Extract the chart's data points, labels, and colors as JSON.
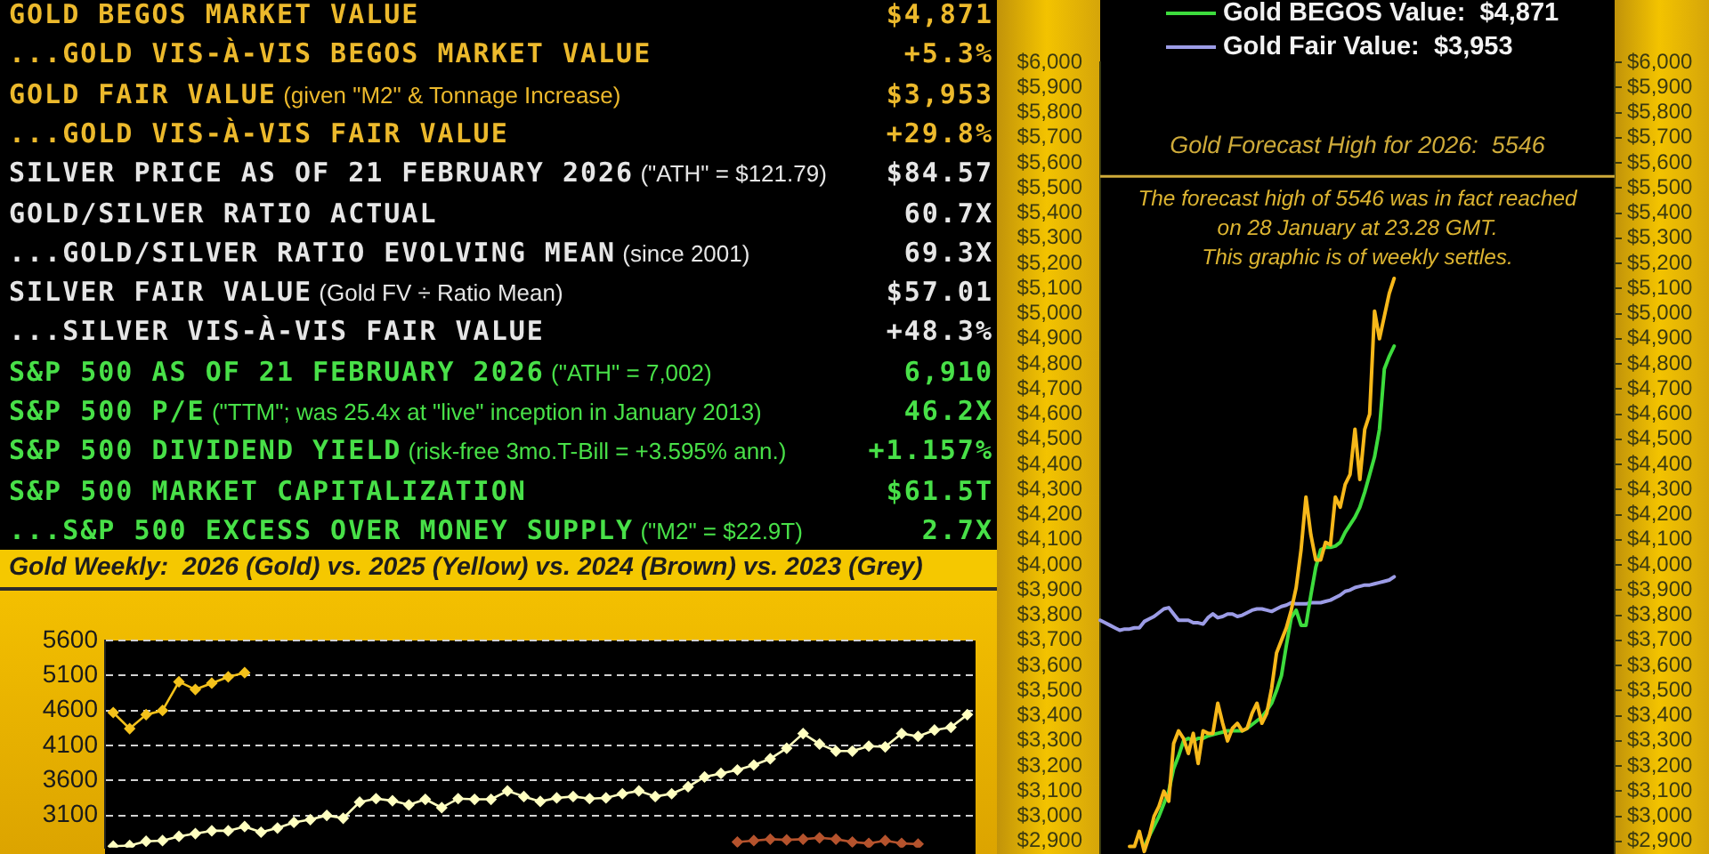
{
  "chart_data": [
    {
      "type": "other",
      "categories": [
        "GOLD BEGOS MARKET VALUE",
        "...GOLD VIS-À-VIS BEGOS MARKET VALUE",
        "GOLD FAIR VALUE (given \"M2\" & Tonnage Increase)",
        "...GOLD VIS-À-VIS FAIR VALUE",
        "SILVER PRICE AS OF 21 FEBRUARY 2026 (\"ATH\" = $121.79)",
        "GOLD/SILVER RATIO ACTUAL",
        "...GOLD/SILVER RATIO EVOLVING MEAN (since 2001)",
        "SILVER FAIR VALUE (Gold FV ÷ Ratio Mean)",
        "...SILVER VIS-À-VIS FAIR VALUE",
        "S&P 500 AS OF 21 FEBRUARY 2026 (\"ATH\" = 7,002)",
        "S&P 500 P/E (\"TTM\"; was 25.4x at \"live\" inception in January 2013)",
        "S&P 500 DIVIDEND YIELD (risk-free 3mo.T-Bill = +3.595% ann.)",
        "S&P 500 MARKET CAPITALIZATION",
        "...S&P 500 EXCESS OVER MONEY SUPPLY (\"M2\" = $22.9T)"
      ],
      "value_labels": [
        "$4,871",
        "+5.3%",
        "$3,953",
        "+29.8%",
        "$84.57",
        "60.7X",
        "69.3X",
        "$57.01",
        "+48.3%",
        "6,910",
        "46.2X",
        "+1.157%",
        "$61.5T",
        "2.7X"
      ]
    },
    {
      "type": "line",
      "title": "Gold Weekly:  2026 (Gold) vs. 2025 (Yellow) vs. 2024 (Brown) vs. 2023 (Grey)",
      "categories": [
        null,
        null,
        null,
        null,
        null,
        null,
        null,
        null,
        null,
        null,
        null,
        null,
        null,
        null,
        null,
        null,
        null,
        null,
        null,
        null,
        null,
        null,
        null,
        null,
        null,
        null,
        null,
        null,
        null,
        null,
        null,
        null,
        null,
        null,
        null,
        null,
        null,
        null,
        null,
        null,
        null,
        null,
        null,
        null,
        null,
        null,
        null,
        null,
        null,
        null,
        null,
        null,
        null
      ],
      "series": [
        {
          "color": "#f4c21b",
          "values": [
            4570,
            4340,
            4540,
            4600,
            5010,
            4900,
            4990,
            5080,
            5140,
            null,
            null,
            null,
            null,
            null,
            null,
            null,
            null,
            null,
            null,
            null,
            null,
            null,
            null,
            null,
            null,
            null,
            null,
            null,
            null,
            null,
            null,
            null,
            null,
            null,
            null,
            null,
            null,
            null,
            null,
            null,
            null,
            null,
            null,
            null,
            null,
            null,
            null,
            null,
            null,
            null,
            null,
            null,
            null
          ]
        },
        {
          "color": "#ffffc0",
          "values": [
            2660,
            2670,
            2730,
            2740,
            2800,
            2840,
            2880,
            2880,
            2940,
            2860,
            2920,
            3000,
            3040,
            3100,
            3060,
            3290,
            3340,
            3310,
            3250,
            3330,
            3210,
            3340,
            3330,
            3330,
            3450,
            3370,
            3300,
            3350,
            3370,
            3340,
            3350,
            3410,
            3450,
            3370,
            3410,
            3510,
            3650,
            3700,
            3750,
            3820,
            3910,
            4060,
            4270,
            4120,
            4020,
            4020,
            4090,
            4080,
            4270,
            4230,
            4320,
            4360,
            4540
          ]
        },
        {
          "color": "#b5532d",
          "values": [
            null,
            null,
            null,
            null,
            null,
            null,
            null,
            null,
            null,
            null,
            null,
            null,
            null,
            null,
            null,
            null,
            null,
            null,
            null,
            null,
            null,
            null,
            null,
            null,
            null,
            null,
            null,
            null,
            null,
            null,
            null,
            null,
            null,
            null,
            null,
            null,
            null,
            null,
            2720,
            2740,
            2760,
            2750,
            2760,
            2780,
            2760,
            2720,
            2700,
            2740,
            2700,
            2690,
            null,
            null,
            null
          ]
        }
      ],
      "ylim": [
        2640,
        5600
      ],
      "yticks": [
        3100,
        3600,
        4100,
        4600,
        5100,
        5600
      ],
      "grid": "y",
      "marker": "diamond",
      "tick_labels": "y"
    },
    {
      "type": "line",
      "categories": [
        null,
        null,
        null,
        null,
        null,
        null,
        null,
        null,
        null,
        null,
        null,
        null,
        null,
        null,
        null,
        null,
        null,
        null,
        null,
        null,
        null,
        null,
        null,
        null,
        null,
        null,
        null,
        null,
        null,
        null,
        null,
        null,
        null,
        null,
        null,
        null,
        null,
        null,
        null,
        null,
        null,
        null,
        null,
        null,
        null,
        null,
        null,
        null,
        null,
        null,
        null,
        null,
        null,
        null,
        null,
        null,
        null,
        null,
        null,
        null,
        null,
        null,
        null,
        null,
        null,
        null,
        null,
        null,
        null,
        null,
        null,
        null,
        null,
        null,
        null,
        null,
        null,
        null,
        null,
        null,
        null,
        null,
        null,
        null,
        null,
        null,
        null,
        null,
        null,
        null,
        null,
        null,
        null,
        null,
        null,
        null,
        null,
        null,
        null,
        null,
        null,
        null,
        null,
        null,
        null,
        null
      ],
      "series": [
        {
          "color": "#f7b81a",
          "values": [
            null,
            null,
            null,
            null,
            null,
            null,
            2880,
            2880,
            2940,
            2860,
            2920,
            3000,
            3040,
            3100,
            3060,
            3290,
            3340,
            3310,
            3250,
            3330,
            3210,
            3340,
            3330,
            3330,
            3450,
            3370,
            3300,
            3350,
            3370,
            3340,
            3350,
            3410,
            3450,
            3370,
            3410,
            3510,
            3650,
            3700,
            3750,
            3820,
            3910,
            4060,
            4270,
            4120,
            4020,
            4020,
            4090,
            4080,
            4270,
            4230,
            4320,
            4360,
            4540,
            4340,
            4540,
            4600,
            5010,
            4900,
            4990,
            5080,
            5140,
            null,
            null,
            null,
            null,
            null,
            null,
            null,
            null,
            null,
            null,
            null,
            null,
            null,
            null,
            null,
            null,
            null,
            null,
            null,
            null,
            null,
            null,
            null,
            null,
            null,
            null,
            null,
            null,
            null,
            null,
            null,
            null,
            null,
            null,
            null,
            null,
            null,
            null,
            null,
            null,
            null,
            null,
            null,
            null,
            null
          ]
        },
        {
          "name": "Gold BEGOS Value:  $4,871",
          "color": "#3ddc3d",
          "values": [
            null,
            null,
            null,
            null,
            null,
            null,
            null,
            null,
            null,
            2880,
            2920,
            2960,
            3000,
            3050,
            3100,
            3190,
            3240,
            3300,
            3310,
            3300,
            3310,
            3310,
            3320,
            3325,
            3330,
            3335,
            3340,
            3340,
            3340,
            3340,
            3350,
            3365,
            3380,
            3395,
            3420,
            3450,
            3500,
            3560,
            3680,
            3790,
            3820,
            3760,
            3760,
            3880,
            3990,
            4060,
            4070,
            4070,
            4075,
            4090,
            4130,
            4160,
            4190,
            4230,
            4290,
            4360,
            4430,
            4540,
            4780,
            4830,
            4871,
            null,
            null,
            null,
            null,
            null,
            null,
            null,
            null,
            null,
            null,
            null,
            null,
            null,
            null,
            null,
            null,
            null,
            null,
            null,
            null,
            null,
            null,
            null,
            null,
            null,
            null,
            null,
            null,
            null,
            null,
            null,
            null,
            null,
            null,
            null,
            null,
            null,
            null,
            null,
            null,
            null,
            null,
            null,
            null,
            null
          ]
        },
        {
          "name": "Gold Fair Value:  $3,953",
          "color": "#9c9ce6",
          "values": [
            3780,
            3770,
            3760,
            3750,
            3740,
            3745,
            3745,
            3750,
            3750,
            3775,
            3785,
            3795,
            3810,
            3825,
            3830,
            3805,
            3780,
            3780,
            3780,
            3770,
            3770,
            3765,
            3790,
            3805,
            3790,
            3795,
            3805,
            3805,
            3795,
            3800,
            3810,
            3820,
            3825,
            3825,
            3820,
            3815,
            3825,
            3835,
            3840,
            3850,
            3845,
            3845,
            3845,
            3850,
            3850,
            3850,
            3855,
            3860,
            3870,
            3880,
            3895,
            3900,
            3910,
            3915,
            3920,
            3920,
            3925,
            3930,
            3935,
            3940,
            3953,
            null,
            null,
            null,
            null,
            null,
            null,
            null,
            null,
            null,
            null,
            null,
            null,
            null,
            null,
            null,
            null,
            null,
            null,
            null,
            null,
            null,
            null,
            null,
            null,
            null,
            null,
            null,
            null,
            null,
            null,
            null,
            null,
            null,
            null,
            null,
            null,
            null,
            null,
            null,
            null,
            null,
            null,
            null,
            null,
            null
          ]
        }
      ],
      "ylim": [
        2850,
        6000
      ],
      "yticks": [
        {
          "value": 2900,
          "label": "$2,900"
        },
        {
          "value": 3000,
          "label": "$3,000"
        },
        {
          "value": 3100,
          "label": "$3,100"
        },
        {
          "value": 3200,
          "label": "$3,200"
        },
        {
          "value": 3300,
          "label": "$3,300"
        },
        {
          "value": 3400,
          "label": "$3,400"
        },
        {
          "value": 3500,
          "label": "$3,500"
        },
        {
          "value": 3600,
          "label": "$3,600"
        },
        {
          "value": 3700,
          "label": "$3,700"
        },
        {
          "value": 3800,
          "label": "$3,800"
        },
        {
          "value": 3900,
          "label": "$3,900"
        },
        {
          "value": 4000,
          "label": "$4,000"
        },
        {
          "value": 4100,
          "label": "$4,100"
        },
        {
          "value": 4200,
          "label": "$4,200"
        },
        {
          "value": 4300,
          "label": "$4,300"
        },
        {
          "value": 4400,
          "label": "$4,400"
        },
        {
          "value": 4500,
          "label": "$4,500"
        },
        {
          "value": 4600,
          "label": "$4,600"
        },
        {
          "value": 4700,
          "label": "$4,700"
        },
        {
          "value": 4800,
          "label": "$4,800"
        },
        {
          "value": 4900,
          "label": "$4,900"
        },
        {
          "value": 5000,
          "label": "$5,000"
        },
        {
          "value": 5100,
          "label": "$5,100"
        },
        {
          "value": 5200,
          "label": "$5,200"
        },
        {
          "value": 5300,
          "label": "$5,300"
        },
        {
          "value": 5400,
          "label": "$5,400"
        },
        {
          "value": 5500,
          "label": "$5,500"
        },
        {
          "value": 5600,
          "label": "$5,600"
        },
        {
          "value": 5700,
          "label": "$5,700"
        },
        {
          "value": 5800,
          "label": "$5,800"
        },
        {
          "value": 5900,
          "label": "$5,900"
        },
        {
          "value": 6000,
          "label": "$6,000"
        }
      ],
      "y2lim": [
        2850,
        6000
      ],
      "y2ticks": [
        {
          "value": 2900,
          "label": "$2,900"
        },
        {
          "value": 3000,
          "label": "$3,000"
        },
        {
          "value": 3100,
          "label": "$3,100"
        },
        {
          "value": 3200,
          "label": "$3,200"
        },
        {
          "value": 3300,
          "label": "$3,300"
        },
        {
          "value": 3400,
          "label": "$3,400"
        },
        {
          "value": 3500,
          "label": "$3,500"
        },
        {
          "value": 3600,
          "label": "$3,600"
        },
        {
          "value": 3700,
          "label": "$3,700"
        },
        {
          "value": 3800,
          "label": "$3,800"
        },
        {
          "value": 3900,
          "label": "$3,900"
        },
        {
          "value": 4000,
          "label": "$4,000"
        },
        {
          "value": 4100,
          "label": "$4,100"
        },
        {
          "value": 4200,
          "label": "$4,200"
        },
        {
          "value": 4300,
          "label": "$4,300"
        },
        {
          "value": 4400,
          "label": "$4,400"
        },
        {
          "value": 4500,
          "label": "$4,500"
        },
        {
          "value": 4600,
          "label": "$4,600"
        },
        {
          "value": 4700,
          "label": "$4,700"
        },
        {
          "value": 4800,
          "label": "$4,800"
        },
        {
          "value": 4900,
          "label": "$4,900"
        },
        {
          "value": 5000,
          "label": "$5,000"
        },
        {
          "value": 5100,
          "label": "$5,100"
        },
        {
          "value": 5200,
          "label": "$5,200"
        },
        {
          "value": 5300,
          "label": "$5,300"
        },
        {
          "value": 5400,
          "label": "$5,400"
        },
        {
          "value": 5500,
          "label": "$5,500"
        },
        {
          "value": 5600,
          "label": "$5,600"
        },
        {
          "value": 5700,
          "label": "$5,700"
        },
        {
          "value": 5800,
          "label": "$5,800"
        },
        {
          "value": 5900,
          "label": "$5,900"
        },
        {
          "value": 6000,
          "label": "$6,000"
        }
      ],
      "ref_lines": [
        {
          "axis": "y",
          "value": 5546,
          "label": "Gold Forecast High for 2026:  5546",
          "color": "#cfab3a"
        }
      ],
      "annotations": [
        "The forecast high of 5546 was in fact reached\non 28 January at 23.28 GMT.\nThis graphic is of weekly settles."
      ],
      "legend": "top",
      "marker": "none",
      "tick_labels": "y"
    }
  ]
}
